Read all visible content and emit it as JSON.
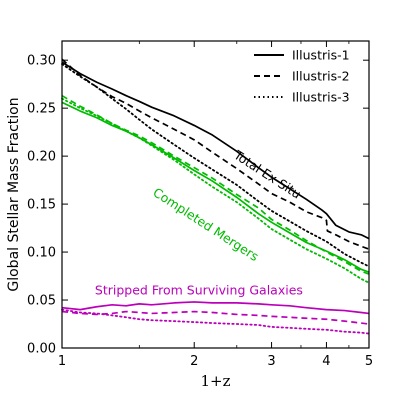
{
  "chart_data": {
    "type": "line",
    "xscale": "log",
    "xlabel": "1+z",
    "ylabel": "Global Stellar Mass Fraction",
    "xlim": [
      1,
      5
    ],
    "ylim": [
      0,
      0.32
    ],
    "xticks": [
      1,
      2,
      3,
      4,
      5
    ],
    "xtick_labels": [
      "1",
      "2",
      "3",
      "4",
      "5"
    ],
    "yticks": [
      0.0,
      0.05,
      0.1,
      0.15,
      0.2,
      0.25,
      0.3
    ],
    "ytick_labels": [
      "0.00",
      "0.05",
      "0.10",
      "0.15",
      "0.20",
      "0.25",
      "0.30"
    ],
    "grid": false,
    "legend": {
      "position": "top-right",
      "entries": [
        {
          "label": "Illustris-1",
          "style": "solid"
        },
        {
          "label": "Illustris-2",
          "style": "dashed"
        },
        {
          "label": "Illustris-3",
          "style": "dotted"
        }
      ]
    },
    "annotations": [
      {
        "text": "Total Ex Situ",
        "color": "#000000",
        "x": 2.9,
        "y": 0.177,
        "rotate": 33
      },
      {
        "text": "Completed Mergers",
        "color": "#00bb00",
        "x": 2.1,
        "y": 0.125,
        "rotate": 33
      },
      {
        "text": "Stripped From Surviving Galaxies",
        "color": "#bb00bb",
        "x": 2.05,
        "y": 0.056,
        "rotate": 0
      }
    ],
    "series": [
      {
        "group": "Total Ex Situ",
        "style": "solid",
        "color": "#000000",
        "x": [
          1.0,
          1.1,
          1.2,
          1.3,
          1.4,
          1.5,
          1.6,
          1.8,
          2.0,
          2.2,
          2.5,
          2.8,
          3.0,
          3.3,
          3.6,
          3.9,
          4.0,
          4.2,
          4.5,
          4.8,
          5.0
        ],
        "y": [
          0.298,
          0.286,
          0.277,
          0.27,
          0.263,
          0.257,
          0.251,
          0.242,
          0.232,
          0.222,
          0.205,
          0.188,
          0.178,
          0.166,
          0.155,
          0.144,
          0.14,
          0.128,
          0.121,
          0.118,
          0.114
        ]
      },
      {
        "group": "Total Ex Situ",
        "style": "dashed",
        "color": "#000000",
        "x": [
          1.0,
          1.1,
          1.2,
          1.3,
          1.4,
          1.5,
          1.6,
          1.8,
          2.0,
          2.2,
          2.5,
          2.8,
          3.0,
          3.3,
          3.6,
          3.9,
          4.0,
          4.02,
          4.2,
          4.5,
          4.8,
          5.0
        ],
        "y": [
          0.301,
          0.284,
          0.272,
          0.262,
          0.255,
          0.247,
          0.24,
          0.228,
          0.217,
          0.204,
          0.187,
          0.171,
          0.161,
          0.152,
          0.142,
          0.136,
          0.133,
          0.122,
          0.118,
          0.111,
          0.106,
          0.103
        ]
      },
      {
        "group": "Total Ex Situ",
        "style": "dotted",
        "color": "#000000",
        "x": [
          1.0,
          1.1,
          1.2,
          1.3,
          1.4,
          1.5,
          1.6,
          1.8,
          2.0,
          2.2,
          2.5,
          2.8,
          3.0,
          3.3,
          3.6,
          4.0,
          4.4,
          4.8,
          5.0
        ],
        "y": [
          0.296,
          0.283,
          0.272,
          0.26,
          0.249,
          0.238,
          0.228,
          0.212,
          0.198,
          0.186,
          0.17,
          0.153,
          0.143,
          0.132,
          0.122,
          0.111,
          0.098,
          0.089,
          0.085
        ]
      },
      {
        "group": "Completed Mergers",
        "style": "solid",
        "color": "#00bb00",
        "x": [
          1.0,
          1.1,
          1.2,
          1.3,
          1.4,
          1.5,
          1.6,
          1.8,
          2.0,
          2.2,
          2.5,
          2.8,
          3.0,
          3.3,
          3.6,
          4.0,
          4.4,
          4.8,
          5.0
        ],
        "y": [
          0.256,
          0.247,
          0.24,
          0.232,
          0.226,
          0.219,
          0.212,
          0.198,
          0.185,
          0.174,
          0.157,
          0.14,
          0.131,
          0.12,
          0.11,
          0.101,
          0.092,
          0.082,
          0.079
        ]
      },
      {
        "group": "Completed Mergers",
        "style": "dashed",
        "color": "#00bb00",
        "x": [
          1.0,
          1.1,
          1.2,
          1.3,
          1.4,
          1.5,
          1.6,
          1.8,
          2.0,
          2.2,
          2.5,
          2.8,
          3.0,
          3.3,
          3.6,
          4.0,
          4.4,
          4.8,
          5.0
        ],
        "y": [
          0.263,
          0.252,
          0.243,
          0.234,
          0.227,
          0.221,
          0.214,
          0.2,
          0.188,
          0.177,
          0.16,
          0.146,
          0.134,
          0.123,
          0.112,
          0.1,
          0.09,
          0.08,
          0.077
        ]
      },
      {
        "group": "Completed Mergers",
        "style": "dotted",
        "color": "#00bb00",
        "x": [
          1.0,
          1.1,
          1.2,
          1.3,
          1.4,
          1.5,
          1.6,
          1.8,
          2.0,
          2.2,
          2.5,
          2.8,
          3.0,
          3.3,
          3.6,
          4.0,
          4.4,
          4.8,
          5.0
        ],
        "y": [
          0.26,
          0.25,
          0.242,
          0.234,
          0.226,
          0.219,
          0.211,
          0.196,
          0.181,
          0.168,
          0.152,
          0.135,
          0.124,
          0.113,
          0.103,
          0.093,
          0.083,
          0.072,
          0.068
        ]
      },
      {
        "group": "Stripped From Surviving Galaxies",
        "style": "solid",
        "color": "#bb00bb",
        "x": [
          1.0,
          1.1,
          1.2,
          1.3,
          1.4,
          1.5,
          1.6,
          1.8,
          2.0,
          2.2,
          2.5,
          2.8,
          3.0,
          3.3,
          3.6,
          4.0,
          4.4,
          4.8,
          5.0
        ],
        "y": [
          0.042,
          0.04,
          0.043,
          0.045,
          0.044,
          0.046,
          0.045,
          0.047,
          0.048,
          0.047,
          0.047,
          0.046,
          0.045,
          0.044,
          0.042,
          0.04,
          0.039,
          0.037,
          0.036
        ]
      },
      {
        "group": "Stripped From Surviving Galaxies",
        "style": "dashed",
        "color": "#bb00bb",
        "x": [
          1.0,
          1.1,
          1.2,
          1.3,
          1.4,
          1.5,
          1.6,
          1.8,
          2.0,
          2.2,
          2.5,
          2.8,
          3.0,
          3.3,
          3.6,
          4.0,
          4.4,
          4.8,
          5.0
        ],
        "y": [
          0.038,
          0.036,
          0.035,
          0.036,
          0.038,
          0.037,
          0.036,
          0.037,
          0.038,
          0.037,
          0.035,
          0.034,
          0.033,
          0.032,
          0.031,
          0.03,
          0.028,
          0.026,
          0.025
        ]
      },
      {
        "group": "Stripped From Surviving Galaxies",
        "style": "dotted",
        "color": "#bb00bb",
        "x": [
          1.0,
          1.1,
          1.2,
          1.3,
          1.4,
          1.5,
          1.6,
          1.8,
          2.0,
          2.2,
          2.5,
          2.8,
          3.0,
          3.3,
          3.6,
          4.0,
          4.4,
          4.8,
          5.0
        ],
        "y": [
          0.04,
          0.037,
          0.036,
          0.034,
          0.032,
          0.03,
          0.029,
          0.028,
          0.027,
          0.026,
          0.025,
          0.024,
          0.022,
          0.021,
          0.02,
          0.019,
          0.017,
          0.016,
          0.015
        ]
      }
    ]
  }
}
